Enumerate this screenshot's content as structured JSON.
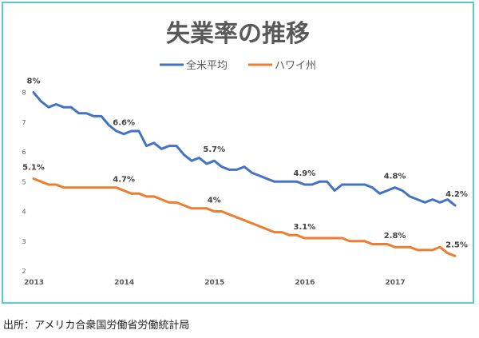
{
  "chart_data": {
    "type": "line",
    "title": "失業率の推移",
    "xlabel": "",
    "ylabel": "",
    "x_tick_labels": [
      "2013",
      "2014",
      "2015",
      "2016",
      "2017"
    ],
    "y_ticks": [
      2,
      3,
      4,
      5,
      6,
      7,
      8
    ],
    "ylim": [
      2,
      8
    ],
    "legend_position": "top",
    "grid": false,
    "series": [
      {
        "name": "全米平均",
        "color": "#4472c4",
        "values": [
          8.0,
          7.7,
          7.5,
          7.6,
          7.5,
          7.5,
          7.3,
          7.3,
          7.2,
          7.2,
          6.9,
          6.7,
          6.6,
          6.7,
          6.7,
          6.2,
          6.3,
          6.1,
          6.2,
          6.2,
          5.9,
          5.7,
          5.8,
          5.6,
          5.7,
          5.5,
          5.4,
          5.4,
          5.5,
          5.3,
          5.2,
          5.1,
          5.0,
          5.0,
          5.0,
          5.0,
          4.9,
          4.9,
          5.0,
          5.0,
          4.7,
          4.9,
          4.9,
          4.9,
          4.9,
          4.8,
          4.6,
          4.7,
          4.8,
          4.7,
          4.5,
          4.4,
          4.3,
          4.4,
          4.3,
          4.4,
          4.2
        ],
        "labels": [
          {
            "index": 0,
            "text": "8%"
          },
          {
            "index": 12,
            "text": "6.6%"
          },
          {
            "index": 24,
            "text": "5.7%"
          },
          {
            "index": 36,
            "text": "4.9%"
          },
          {
            "index": 48,
            "text": "4.8%"
          },
          {
            "index": 56,
            "text": "4.2%"
          }
        ]
      },
      {
        "name": "ハワイ州",
        "color": "#ed7d31",
        "values": [
          5.1,
          5.0,
          4.9,
          4.9,
          4.8,
          4.8,
          4.8,
          4.8,
          4.8,
          4.8,
          4.8,
          4.8,
          4.7,
          4.6,
          4.6,
          4.5,
          4.5,
          4.4,
          4.3,
          4.3,
          4.2,
          4.1,
          4.1,
          4.1,
          4.0,
          4.0,
          3.9,
          3.8,
          3.7,
          3.6,
          3.5,
          3.4,
          3.3,
          3.3,
          3.2,
          3.2,
          3.1,
          3.1,
          3.1,
          3.1,
          3.1,
          3.1,
          3.0,
          3.0,
          3.0,
          2.9,
          2.9,
          2.9,
          2.8,
          2.8,
          2.8,
          2.7,
          2.7,
          2.7,
          2.8,
          2.6,
          2.5
        ],
        "labels": [
          {
            "index": 0,
            "text": "5.1%"
          },
          {
            "index": 12,
            "text": "4.7%"
          },
          {
            "index": 24,
            "text": "4%"
          },
          {
            "index": 36,
            "text": "3.1%"
          },
          {
            "index": 48,
            "text": "2.8%"
          },
          {
            "index": 56,
            "text": "2.5%"
          }
        ]
      }
    ]
  },
  "source_note": "出所：アメリカ合衆国労働省労働統計局"
}
